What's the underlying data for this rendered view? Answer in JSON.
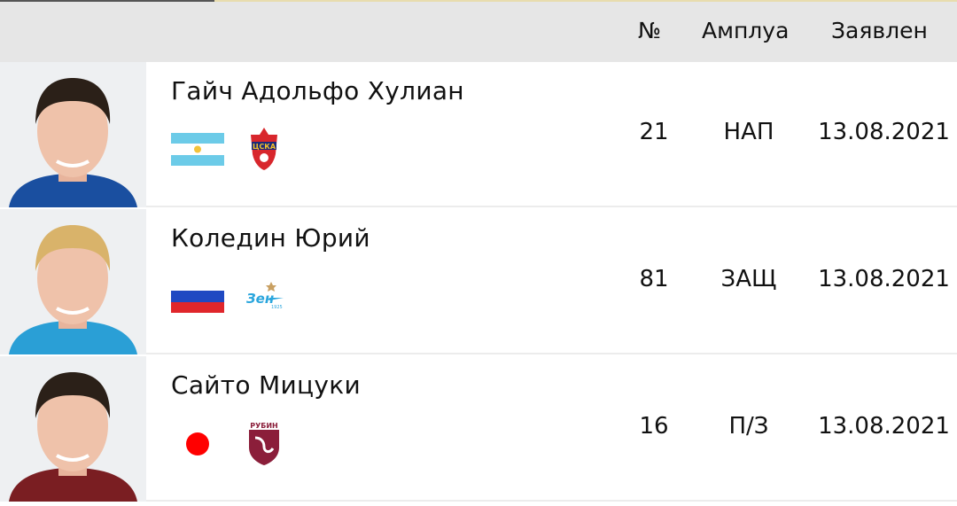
{
  "header": {
    "number": "№",
    "position": "Амплуа",
    "registered": "Заявлен"
  },
  "players": [
    {
      "name": "Гайч Адольфо Хулиан",
      "country": "Argentina",
      "club": "ЦСКА",
      "number": "21",
      "position": "НАП",
      "registered": "13.08.2021",
      "shirt": "#1a4fa0"
    },
    {
      "name": "Коледин Юрий",
      "country": "Russia",
      "club": "Зенит",
      "number": "81",
      "position": "ЗАЩ",
      "registered": "13.08.2021",
      "shirt": "#2a9fd6"
    },
    {
      "name": "Сайто Мицуки",
      "country": "Japan",
      "club": "РУБИН",
      "number": "16",
      "position": "П/З",
      "registered": "13.08.2021",
      "shirt": "#7a1e22"
    }
  ]
}
